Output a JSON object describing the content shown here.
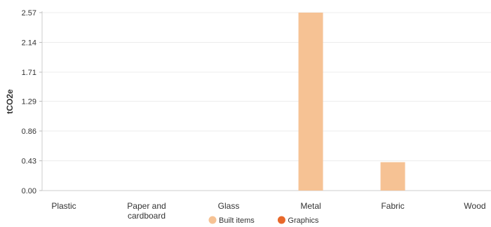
{
  "chart_data": {
    "type": "bar",
    "title": "",
    "xlabel": "",
    "ylabel": "tCO2e",
    "categories": [
      "Plastic",
      "Paper and\ncardboard",
      "Glass",
      "Metal",
      "Fabric",
      "Wood"
    ],
    "series": [
      {
        "name": "Built items",
        "color": "#F6C294",
        "values": [
          0,
          0,
          0,
          2.57,
          0.41,
          0
        ]
      },
      {
        "name": "Graphics",
        "color": "#E8682A",
        "values": [
          0,
          0,
          0,
          0,
          0,
          0
        ]
      }
    ],
    "yticks": [
      "0.00",
      "0.43",
      "0.86",
      "1.29",
      "1.71",
      "2.14",
      "2.57"
    ],
    "ylim": [
      0,
      2.57
    ],
    "grid": true,
    "legend": "bottom-center"
  }
}
